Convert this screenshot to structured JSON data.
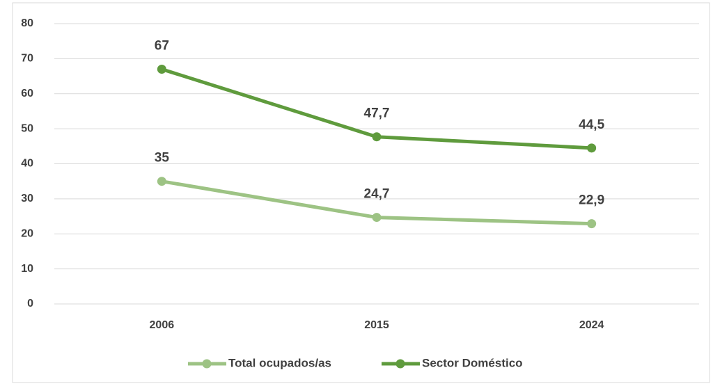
{
  "chart_data": {
    "type": "line",
    "categories": [
      "2006",
      "2015",
      "2024"
    ],
    "series": [
      {
        "name": "Total ocupados/as",
        "color": "#9dc384",
        "values": [
          35,
          24.7,
          22.9
        ],
        "value_labels": [
          "35",
          "24,7",
          "22,9"
        ]
      },
      {
        "name": "Sector Doméstico",
        "color": "#5f9b3d",
        "values": [
          67,
          47.7,
          44.5
        ],
        "value_labels": [
          "67",
          "47,7",
          "44,5"
        ]
      }
    ],
    "ylim": [
      0,
      80
    ],
    "yticks": [
      0,
      10,
      20,
      30,
      40,
      50,
      60,
      70,
      80
    ],
    "grid": true
  }
}
